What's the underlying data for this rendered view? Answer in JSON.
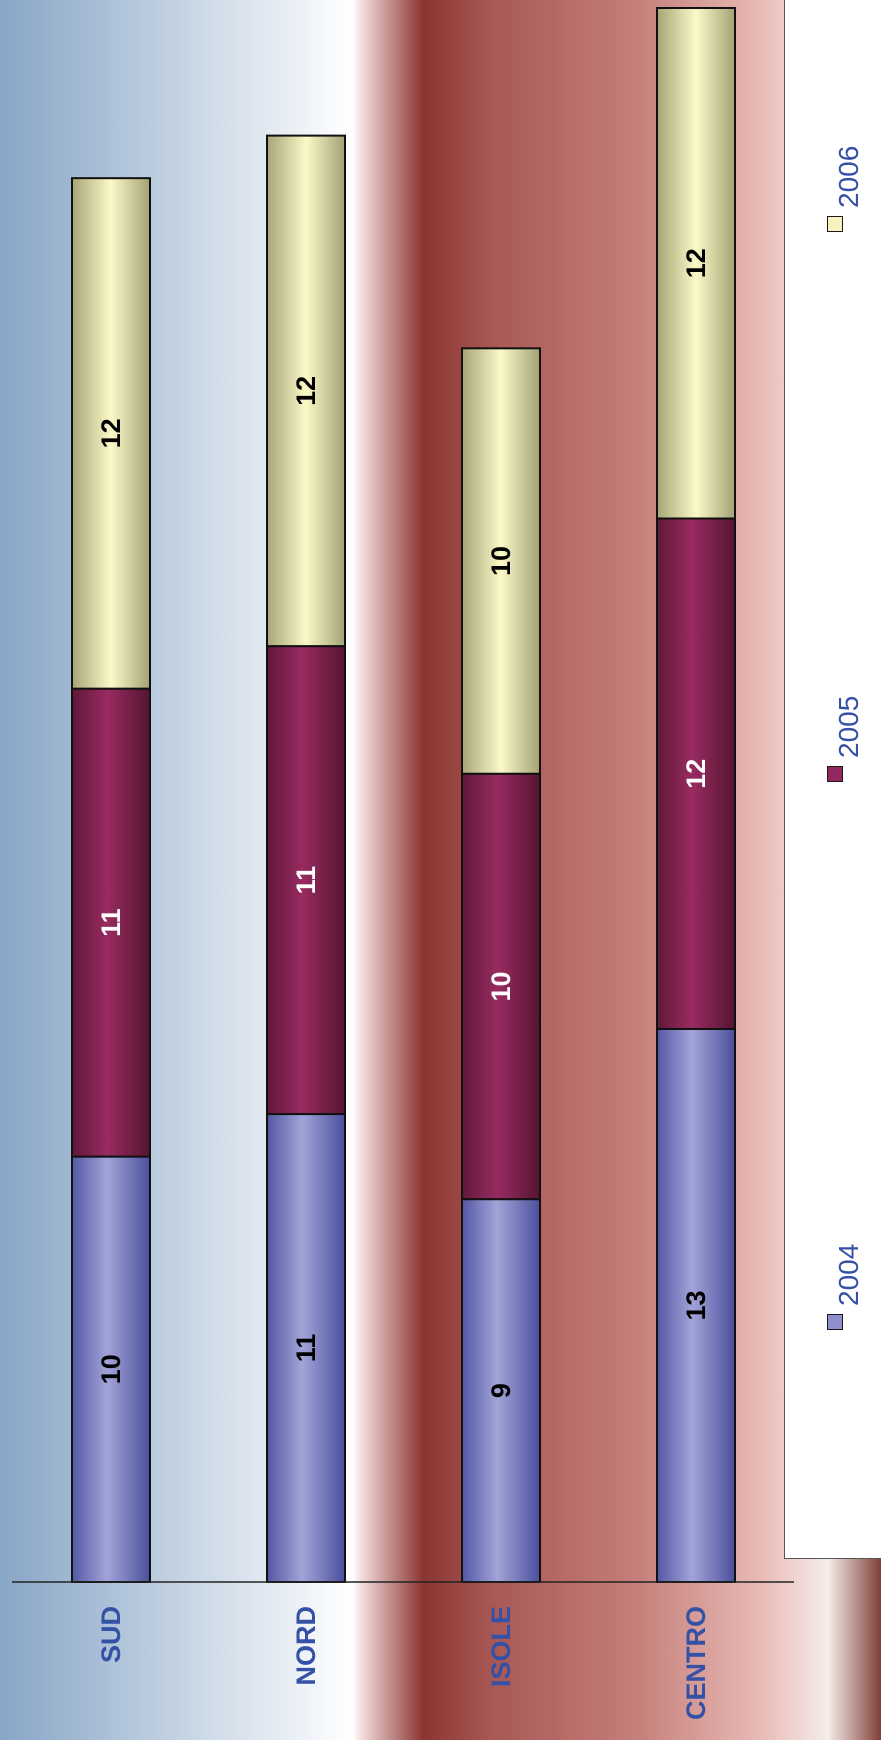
{
  "chart_data": {
    "type": "bar",
    "stacked": true,
    "orientation": "rotated-vertical",
    "categories": [
      "SUD",
      "NORD",
      "ISOLE",
      "CENTRO"
    ],
    "series": [
      {
        "name": "2004",
        "values": [
          10,
          11,
          9,
          13
        ],
        "color": "#8e8fcb"
      },
      {
        "name": "2005",
        "values": [
          11,
          11,
          10,
          12
        ],
        "color": "#93285e"
      },
      {
        "name": "2006",
        "values": [
          12,
          12,
          10,
          12
        ],
        "color": "#f6f3bf"
      }
    ],
    "label_colors": {
      "2004": "#000000",
      "2005": "#ffffff",
      "2006": "#000000"
    },
    "category_label_color": "#3451a6",
    "ylim": [
      0,
      37
    ],
    "grid": false,
    "legend_position": "right"
  },
  "legend": [
    {
      "label": "2004",
      "color": "#8e8fcb"
    },
    {
      "label": "2005",
      "color": "#93285e"
    },
    {
      "label": "2006",
      "color": "#f6f3bf"
    }
  ]
}
